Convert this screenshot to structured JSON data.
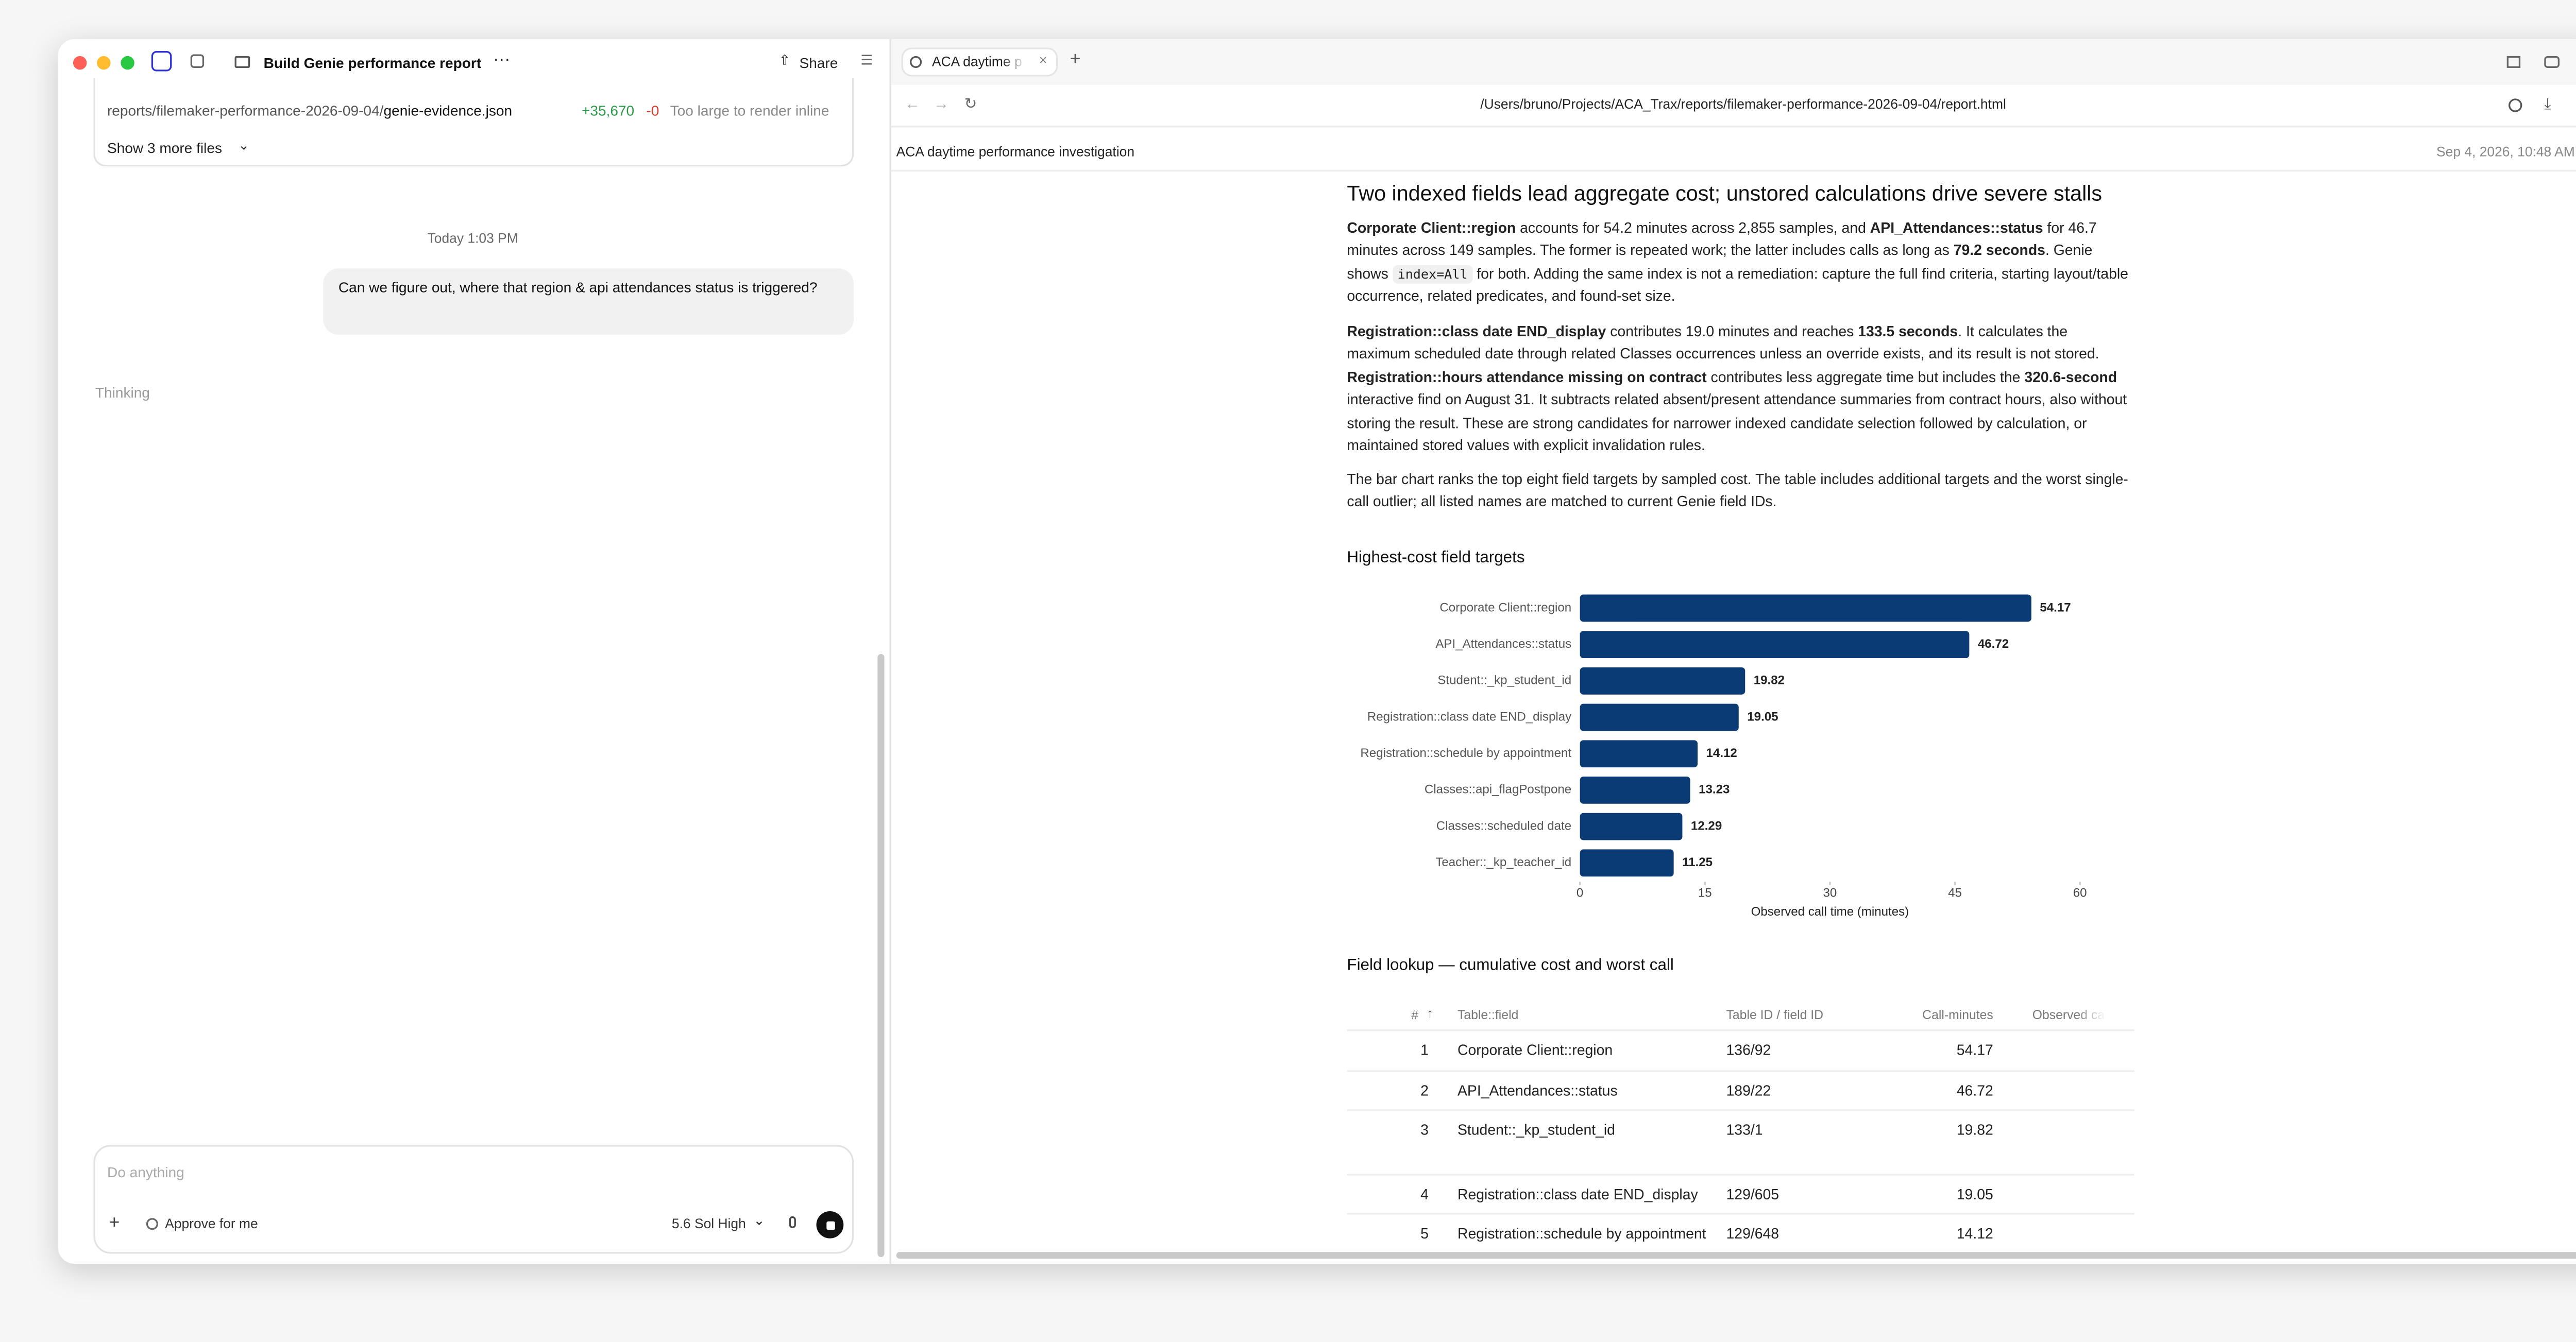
{
  "sidebar": {
    "title": "Build Genie performance report",
    "share": "Share",
    "file": {
      "path": "reports/filemaker-performance-2026-09-04/",
      "name": "genie-evidence.json",
      "added": "+35,670",
      "removed": "-0",
      "note": "Too large to render inline"
    },
    "more_files": "Show 3 more files",
    "timestamp": "Today 1:03 PM",
    "message": "Can we figure out, where that region & api attendances status is triggered?",
    "status": "Thinking",
    "composer": {
      "placeholder": "Do anything",
      "approve": "Approve for me",
      "model": "5.6 Sol High"
    }
  },
  "browser": {
    "tab": "ACA daytime p",
    "url": "/Users/bruno/Projects/ACA_Trax/reports/filemaker-performance-2026-09-04/report.html",
    "page_title": "ACA daytime performance investigation",
    "date": "Sep 4, 2026, 10:48 AM"
  },
  "report": {
    "heading": "Two indexed fields lead aggregate cost; unstored calculations drive severe stalls",
    "paragraphs": [
      [
        {
          "text": "Corporate Client::region",
          "style": "bold"
        },
        " accounts for 54.2 minutes across 2,855 samples, and ",
        {
          "text": "API_Attendances::status",
          "style": "bold"
        },
        " for 46.7 minutes across 149 samples. The former is repeated work; the latter includes calls as long as ",
        {
          "text": "79.2 seconds",
          "style": "bold"
        },
        ". Genie shows ",
        {
          "text": "index=All",
          "style": "code"
        },
        " for both. Adding the same index is not a remediation: capture the full find criteria, starting layout/table occurrence, related predicates, and found-set size."
      ],
      [
        {
          "text": "Registration::class date END_display",
          "style": "bold"
        },
        " contributes 19.0 minutes and reaches ",
        {
          "text": "133.5 seconds",
          "style": "bold"
        },
        ". It calculates the maximum scheduled date through related Classes occurrences unless an override exists, and its result is not stored. ",
        {
          "text": "Registration::hours attendance missing on contract",
          "style": "bold"
        },
        " contributes less aggregate time but includes the ",
        {
          "text": "320.6-second",
          "style": "bold"
        },
        " interactive find on August 31. It subtracts related absent/present attendance summaries from contract hours, also without storing the result. These are strong candidates for narrower indexed candidate selection followed by calculation, or maintained stored values with explicit invalidation rules."
      ],
      [
        "The bar chart ranks the top eight field targets by sampled cost. The table includes additional targets and the worst single-call outlier; all listed names are matched to current Genie field IDs."
      ]
    ],
    "table_title": "Field lookup — cumulative cost and worst call",
    "table": {
      "columns": [
        "#",
        "Table::field",
        "Table ID / field ID",
        "Call-minutes",
        "Observed ca"
      ],
      "rows": [
        [
          1,
          "Corporate Client::region",
          "136/92",
          54.17
        ],
        [
          2,
          "API_Attendances::status",
          "189/22",
          46.72
        ],
        [
          3,
          "Student::_kp_student_id",
          "133/1",
          19.82
        ],
        [
          4,
          "Registration::class date END_display",
          "129/605",
          19.05
        ],
        [
          5,
          "Registration::schedule by appointment",
          "129/648",
          14.12
        ]
      ]
    }
  },
  "chart_data": {
    "type": "bar",
    "orientation": "horizontal",
    "title": "Highest-cost field targets",
    "categories": [
      "Corporate Client::region",
      "API_Attendances::status",
      "Student::_kp_student_id",
      "Registration::class date END_display",
      "Registration::schedule by appointment",
      "Classes::api_flagPostpone",
      "Classes::scheduled date",
      "Teacher::_kp_teacher_id"
    ],
    "values": [
      54.17,
      46.72,
      19.82,
      19.05,
      14.12,
      13.23,
      12.29,
      11.25
    ],
    "color": "#0b3b74",
    "xlim": [
      0,
      60
    ],
    "xticks": [
      0,
      15,
      30,
      45,
      60
    ],
    "xlabel": "Observed call time (minutes)"
  }
}
